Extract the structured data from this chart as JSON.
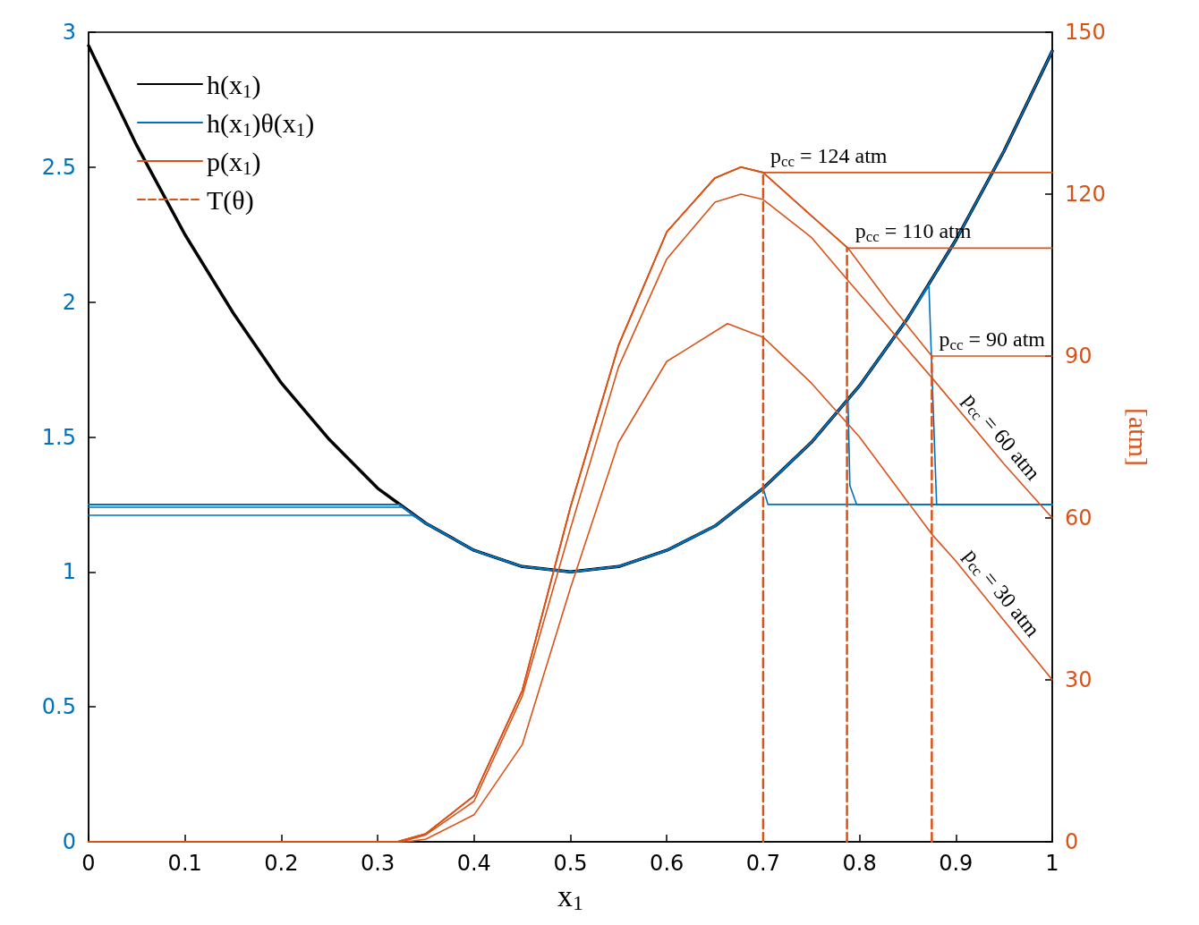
{
  "chart_data": {
    "type": "line",
    "xlabel": "x$_{1}$",
    "y2label": "[atm]",
    "xlim": [
      0,
      1
    ],
    "xticks": [
      0,
      0.1,
      0.2,
      0.3,
      0.4,
      0.5,
      0.6,
      0.7,
      0.8,
      0.9,
      1
    ],
    "ylim": [
      0,
      3
    ],
    "yticks": [
      0,
      0.5,
      1,
      1.5,
      2,
      2.5,
      3
    ],
    "y2lim": [
      0,
      150
    ],
    "y2ticks": [
      0,
      30,
      60,
      90,
      120,
      150
    ],
    "grid": false,
    "legend": "top left",
    "marker": "none",
    "series": [
      {
        "name": "h(x$_{1}$)",
        "color": "#000000",
        "x": [
          0,
          0.05,
          0.1,
          0.15,
          0.2,
          0.25,
          0.3,
          0.35,
          0.4,
          0.45,
          0.5,
          0.55,
          0.6,
          0.65,
          0.7,
          0.75,
          0.8,
          0.85,
          0.9,
          0.95,
          1
        ],
        "values": [
          2.95,
          2.58,
          2.25,
          1.96,
          1.7,
          1.49,
          1.31,
          1.18,
          1.08,
          1.02,
          1,
          1.02,
          1.08,
          1.17,
          1.31,
          1.48,
          1.69,
          1.94,
          2.23,
          2.56,
          2.93
        ]
      },
      {
        "name": "h(x$_{1}$)θ(x$_{1}$)",
        "color": "#0072bd",
        "x": [
          0,
          0.322,
          0.35,
          0.4,
          0.45,
          0.5,
          0.55,
          0.6,
          0.65,
          0.7,
          0.705,
          1
        ],
        "values": [
          1.25,
          1.25,
          1.18,
          1.08,
          1.02,
          1,
          1.02,
          1.08,
          1.17,
          1.31,
          1.25,
          1.25
        ]
      },
      {
        "color": "#0072bd",
        "x": [
          0,
          0.322,
          0.35,
          0.4,
          0.45,
          0.5,
          0.55,
          0.6,
          0.65,
          0.7,
          0.75,
          0.788,
          0.79,
          0.797,
          1
        ],
        "values": [
          1.25,
          1.25,
          1.18,
          1.08,
          1.02,
          1,
          1.02,
          1.08,
          1.17,
          1.31,
          1.48,
          1.64,
          1.32,
          1.25,
          1.25
        ]
      },
      {
        "color": "#0072bd",
        "x": [
          0,
          0.322,
          0.35,
          0.4,
          0.45,
          0.5,
          0.55,
          0.6,
          0.65,
          0.7,
          0.75,
          0.8,
          0.85,
          0.872,
          0.88,
          1
        ],
        "values": [
          1.25,
          1.25,
          1.18,
          1.08,
          1.02,
          1,
          1.02,
          1.08,
          1.17,
          1.31,
          1.48,
          1.69,
          1.94,
          2.06,
          1.25,
          1.25
        ]
      },
      {
        "color": "#0072bd",
        "x": [
          0,
          0.325,
          0.35,
          0.4,
          0.45,
          0.5,
          0.55,
          0.6,
          0.65,
          0.7,
          0.75,
          0.8,
          0.85,
          0.9,
          0.95,
          1
        ],
        "values": [
          1.24,
          1.24,
          1.18,
          1.08,
          1.02,
          1,
          1.02,
          1.08,
          1.17,
          1.31,
          1.48,
          1.69,
          1.94,
          2.23,
          2.56,
          2.93
        ]
      },
      {
        "color": "#0072bd",
        "x": [
          0,
          0.336,
          0.35,
          0.4,
          0.45,
          0.5,
          0.55,
          0.6,
          0.65,
          0.7,
          0.75,
          0.8,
          0.85,
          0.9,
          0.95,
          1
        ],
        "values": [
          1.21,
          1.21,
          1.18,
          1.08,
          1.02,
          1,
          1.02,
          1.08,
          1.17,
          1.31,
          1.48,
          1.69,
          1.94,
          2.23,
          2.56,
          2.93
        ]
      },
      {
        "name": "p(x$_{1}$)",
        "color": "#d95319",
        "axis": "y2",
        "x": [
          0,
          0.32,
          0.35,
          0.4,
          0.45,
          0.5,
          0.55,
          0.6,
          0.65,
          0.677,
          0.7,
          1
        ],
        "values": [
          0,
          0,
          1.5,
          8.5,
          28,
          62,
          92,
          113,
          123,
          125,
          124,
          124
        ]
      },
      {
        "color": "#d95319",
        "axis": "y2",
        "x": [
          0,
          0.32,
          0.35,
          0.4,
          0.45,
          0.5,
          0.55,
          0.6,
          0.65,
          0.677,
          0.7,
          0.75,
          0.788,
          1
        ],
        "values": [
          0,
          0,
          1.5,
          8.5,
          28,
          62,
          92,
          113,
          123,
          125,
          124,
          116,
          110,
          110
        ]
      },
      {
        "color": "#d95319",
        "axis": "y2",
        "x": [
          0,
          0.32,
          0.35,
          0.4,
          0.45,
          0.5,
          0.55,
          0.6,
          0.65,
          0.677,
          0.7,
          0.75,
          0.788,
          0.83,
          0.875,
          1
        ],
        "values": [
          0,
          0,
          1.5,
          8.5,
          28,
          62,
          92,
          113,
          123,
          125,
          124,
          116,
          110,
          100,
          90,
          90
        ]
      },
      {
        "color": "#d95319",
        "axis": "y2",
        "x": [
          0,
          0.325,
          0.35,
          0.4,
          0.45,
          0.5,
          0.55,
          0.6,
          0.65,
          0.677,
          0.7,
          0.75,
          0.788,
          0.875,
          0.95,
          1
        ],
        "values": [
          0,
          0,
          1.3,
          7.5,
          27,
          58,
          88,
          108,
          118.5,
          120,
          119,
          112,
          104,
          86,
          70,
          60
        ]
      },
      {
        "color": "#d95319",
        "axis": "y2",
        "x": [
          0,
          0.33,
          0.35,
          0.4,
          0.45,
          0.5,
          0.55,
          0.6,
          0.663,
          0.7,
          0.75,
          0.8,
          0.85,
          0.875,
          0.9,
          0.95,
          1
        ],
        "values": [
          0,
          0,
          0.5,
          5,
          18,
          47,
          74,
          89,
          96,
          93.5,
          85,
          75,
          63,
          57,
          52,
          41,
          30
        ]
      },
      {
        "name": "T(θ)",
        "color": "#d95319",
        "axis": "y2",
        "line_style": "dashed",
        "x": [
          0.7,
          0.7
        ],
        "values": [
          0,
          124
        ]
      },
      {
        "color": "#d95319",
        "axis": "y2",
        "line_style": "dashed",
        "x": [
          0.787,
          0.787
        ],
        "values": [
          0,
          110
        ]
      },
      {
        "color": "#d95319",
        "axis": "y2",
        "line_style": "dashed",
        "x": [
          0.875,
          0.875
        ],
        "values": [
          0,
          90
        ]
      }
    ],
    "annotations": [
      "p$_{cc}$ = 124 atm",
      "p$_{cc}$ = 110 atm",
      "p$_{cc}$ = 90 atm",
      "p$_{cc}$ = 60 atm",
      "p$_{cc}$ = 30 atm"
    ]
  }
}
